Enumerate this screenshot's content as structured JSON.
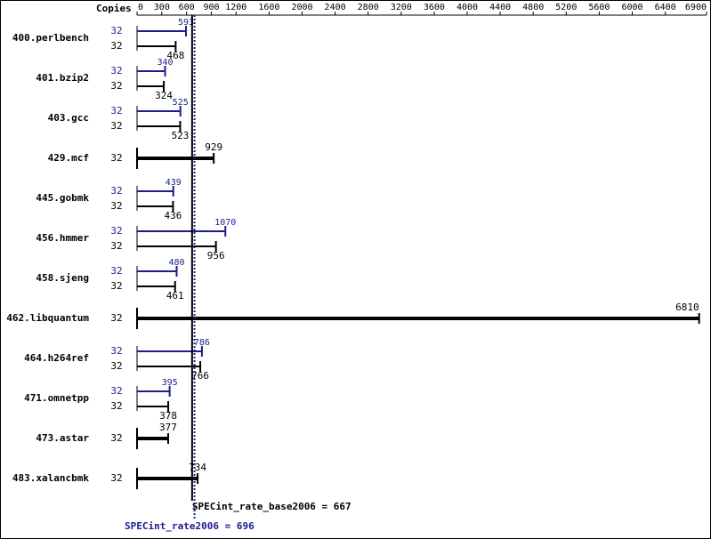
{
  "chart_data": {
    "type": "bar",
    "orientation": "horizontal",
    "copies_label": "Copies",
    "categories": [
      "400.perlbench",
      "401.bzip2",
      "403.gcc",
      "429.mcf",
      "445.gobmk",
      "456.hmmer",
      "458.sjeng",
      "462.libquantum",
      "464.h264ref",
      "471.omnetpp",
      "473.astar",
      "483.xalancbmk"
    ],
    "series": [
      {
        "color": "#1c1c8c",
        "values": [
          593,
          340,
          525,
          null,
          439,
          1070,
          480,
          null,
          786,
          395,
          null,
          null
        ],
        "copies": [
          32,
          32,
          32,
          null,
          32,
          32,
          32,
          null,
          32,
          32,
          null,
          null
        ]
      },
      {
        "color": "#000000",
        "values": [
          468,
          324,
          523,
          929,
          436,
          956,
          461,
          6810,
          766,
          378,
          377,
          734
        ],
        "copies": [
          32,
          32,
          32,
          32,
          32,
          32,
          32,
          32,
          32,
          32,
          32,
          32
        ]
      }
    ],
    "xlim": [
      0,
      6900
    ],
    "xticks": [
      0,
      300,
      600,
      900,
      1200,
      1600,
      2000,
      2400,
      2800,
      3200,
      3600,
      4000,
      4400,
      4800,
      5200,
      5600,
      6000,
      6400,
      6900
    ],
    "reference_lines": [
      {
        "label": "SPECint_rate_base2006 = 667",
        "value": 667,
        "color": "#000000",
        "style": "solid"
      },
      {
        "label": "SPECint_rate2006 = 696",
        "value": 696,
        "color": "#1c1c8c",
        "style": "dotted"
      }
    ]
  }
}
